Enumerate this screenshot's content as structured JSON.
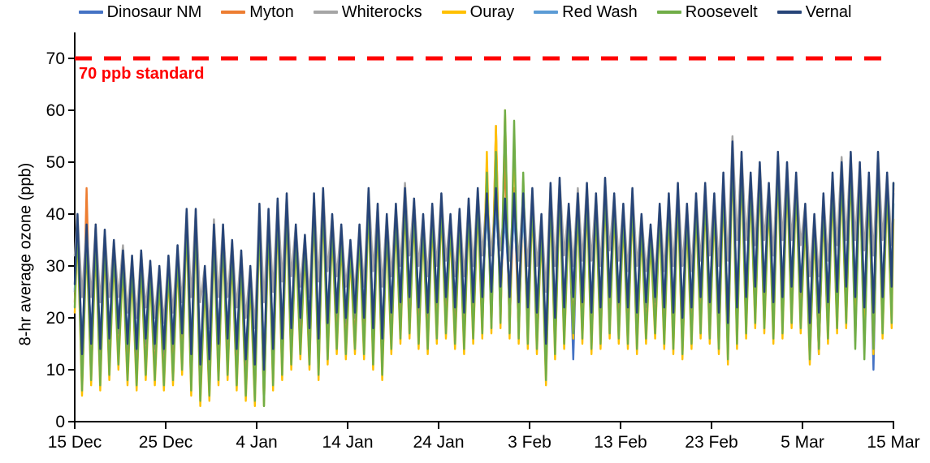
{
  "chart_data": {
    "type": "line",
    "title": "",
    "xlabel": "",
    "ylabel": "8-hr average ozone (ppb)",
    "ylim": [
      0,
      75
    ],
    "grid": false,
    "legend_position": "top",
    "y_ticks": [
      0,
      10,
      20,
      30,
      40,
      50,
      60,
      70
    ],
    "x_tick_days": [
      0,
      10,
      20,
      30,
      40,
      50,
      60,
      70,
      80,
      90
    ],
    "x_tick_labels": [
      "15 Dec",
      "25 Dec",
      "4 Jan",
      "14 Jan",
      "24 Jan",
      "3 Feb",
      "13 Feb",
      "23 Feb",
      "5 Mar",
      "15 Mar"
    ],
    "days_total": 90,
    "x_unit": "day (hourly 8-hr running averages oscillate daily between daily_min and daily_max)",
    "reference_line": {
      "value": 70,
      "label": "70 ppb standard",
      "color": "#ff0000"
    },
    "series": [
      {
        "name": "Dinosaur NM",
        "color": "#4472C4",
        "daily_max": [
          38,
          36,
          36,
          35,
          33,
          31,
          30,
          31,
          29,
          28,
          30,
          32,
          39,
          39,
          28,
          36,
          36,
          33,
          31,
          28,
          40,
          39,
          41,
          42,
          36,
          34,
          42,
          43,
          38,
          36,
          33,
          36,
          43,
          40,
          38,
          40,
          43,
          41,
          38,
          40,
          42,
          38,
          39,
          41,
          43,
          42,
          43,
          41,
          42,
          42,
          43,
          38,
          44,
          45,
          40,
          42,
          44,
          42,
          45,
          42,
          40,
          43,
          38,
          36,
          40,
          42,
          44,
          40,
          42,
          44,
          42,
          46,
          52,
          50,
          46,
          48,
          44,
          50,
          48,
          46,
          40,
          38,
          42,
          46,
          48,
          50,
          48,
          46,
          50,
          46,
          44
        ],
        "daily_min": [
          12,
          14,
          13,
          15,
          17,
          14,
          13,
          15,
          14,
          13,
          14,
          16,
          12,
          10,
          11,
          14,
          15,
          13,
          11,
          10,
          9,
          13,
          15,
          17,
          19,
          17,
          15,
          18,
          20,
          19,
          20,
          19,
          17,
          15,
          20,
          22,
          23,
          21,
          20,
          22,
          23,
          21,
          20,
          22,
          23,
          24,
          25,
          23,
          22,
          21,
          20,
          14,
          19,
          21,
          12,
          22,
          20,
          21,
          23,
          22,
          21,
          20,
          22,
          23,
          21,
          20,
          19,
          21,
          23,
          22,
          20,
          18,
          21,
          23,
          25,
          24,
          22,
          23,
          25,
          24,
          18,
          13,
          22,
          24,
          25,
          23,
          15,
          10,
          23,
          25,
          24
        ]
      },
      {
        "name": "Myton",
        "color": "#ED7D31",
        "daily_max": [
          39,
          45,
          38,
          36,
          34,
          32,
          31,
          32,
          30,
          29,
          31,
          33,
          40,
          40,
          29,
          37,
          37,
          34,
          32,
          29,
          41,
          40,
          42,
          43,
          37,
          35,
          43,
          44,
          39,
          37,
          34,
          37,
          44,
          41,
          39,
          41,
          44,
          42,
          39,
          41,
          43,
          39,
          40,
          42,
          44,
          50,
          57,
          52,
          45,
          43,
          44,
          39,
          45,
          46,
          41,
          43,
          45,
          43,
          46,
          43,
          41,
          44,
          39,
          37,
          41,
          43,
          45,
          41,
          43,
          45,
          43,
          47,
          53,
          51,
          47,
          49,
          45,
          51,
          49,
          47,
          41,
          39,
          43,
          47,
          49,
          51,
          49,
          47,
          51,
          47,
          45
        ],
        "daily_min": [
          7,
          9,
          8,
          10,
          12,
          9,
          8,
          10,
          9,
          8,
          9,
          11,
          7,
          5,
          6,
          9,
          10,
          8,
          6,
          5,
          4,
          8,
          10,
          12,
          14,
          12,
          10,
          13,
          15,
          14,
          15,
          14,
          12,
          10,
          15,
          17,
          18,
          16,
          15,
          17,
          18,
          16,
          15,
          17,
          18,
          19,
          20,
          18,
          17,
          16,
          15,
          9,
          14,
          16,
          18,
          17,
          15,
          16,
          18,
          17,
          16,
          15,
          17,
          18,
          16,
          15,
          14,
          16,
          18,
          17,
          15,
          13,
          16,
          18,
          20,
          19,
          17,
          18,
          20,
          19,
          13,
          15,
          17,
          19,
          20,
          18,
          16,
          15,
          18,
          20,
          19
        ]
      },
      {
        "name": "Whiterocks",
        "color": "#A5A5A5",
        "daily_max": [
          40,
          38,
          38,
          37,
          35,
          34,
          32,
          33,
          31,
          30,
          32,
          34,
          41,
          41,
          30,
          39,
          38,
          35,
          33,
          30,
          42,
          41,
          43,
          44,
          38,
          36,
          44,
          45,
          40,
          38,
          35,
          38,
          45,
          42,
          40,
          42,
          46,
          43,
          40,
          42,
          44,
          40,
          41,
          43,
          45,
          44,
          45,
          43,
          44,
          44,
          45,
          40,
          46,
          47,
          42,
          45,
          46,
          44,
          47,
          44,
          42,
          45,
          40,
          38,
          42,
          44,
          46,
          42,
          44,
          46,
          44,
          48,
          55,
          52,
          48,
          50,
          46,
          52,
          50,
          48,
          42,
          40,
          44,
          48,
          51,
          52,
          50,
          48,
          52,
          48,
          46
        ],
        "daily_min": [
          24,
          24,
          23,
          24,
          24,
          21,
          20,
          22,
          20,
          19,
          21,
          23,
          24,
          23,
          18,
          24,
          24,
          22,
          20,
          18,
          23,
          25,
          27,
          28,
          26,
          24,
          27,
          29,
          28,
          26,
          25,
          26,
          29,
          26,
          28,
          30,
          32,
          30,
          28,
          30,
          31,
          28,
          28,
          30,
          32,
          32,
          33,
          31,
          31,
          30,
          30,
          25,
          30,
          32,
          30,
          31,
          31,
          30,
          33,
          31,
          29,
          30,
          29,
          28,
          29,
          30,
          30,
          29,
          31,
          32,
          30,
          31,
          35,
          35,
          34,
          35,
          32,
          35,
          35,
          34,
          28,
          28,
          31,
          34,
          35,
          35,
          33,
          32,
          35,
          34,
          33
        ]
      },
      {
        "name": "Ouray",
        "color": "#FFC000",
        "daily_max": [
          37,
          35,
          34,
          34,
          32,
          30,
          29,
          30,
          28,
          27,
          29,
          31,
          38,
          38,
          27,
          35,
          35,
          32,
          30,
          27,
          39,
          38,
          40,
          41,
          35,
          33,
          41,
          42,
          37,
          35,
          32,
          35,
          42,
          39,
          37,
          39,
          42,
          40,
          37,
          39,
          41,
          37,
          38,
          40,
          42,
          52,
          57,
          60,
          55,
          47,
          42,
          37,
          43,
          44,
          39,
          41,
          43,
          41,
          44,
          41,
          39,
          42,
          37,
          35,
          39,
          41,
          43,
          39,
          41,
          43,
          41,
          45,
          51,
          49,
          45,
          47,
          43,
          49,
          47,
          45,
          39,
          37,
          41,
          45,
          47,
          49,
          47,
          45,
          49,
          45,
          39
        ],
        "daily_min": [
          5,
          7,
          6,
          8,
          10,
          7,
          6,
          8,
          7,
          6,
          7,
          9,
          5,
          3,
          4,
          7,
          8,
          6,
          4,
          3,
          3,
          6,
          8,
          10,
          12,
          10,
          8,
          11,
          13,
          12,
          13,
          12,
          10,
          8,
          13,
          15,
          16,
          14,
          13,
          15,
          16,
          14,
          13,
          15,
          16,
          17,
          18,
          16,
          15,
          14,
          13,
          7,
          12,
          14,
          16,
          15,
          13,
          14,
          16,
          15,
          14,
          13,
          15,
          16,
          14,
          13,
          12,
          14,
          16,
          15,
          13,
          11,
          14,
          16,
          18,
          17,
          15,
          16,
          18,
          17,
          11,
          13,
          15,
          17,
          18,
          16,
          14,
          13,
          16,
          18,
          17
        ]
      },
      {
        "name": "Red Wash",
        "color": "#5B9BD5",
        "daily_max": [
          36,
          34,
          34,
          33,
          31,
          29,
          28,
          29,
          27,
          26,
          28,
          30,
          37,
          37,
          26,
          34,
          34,
          31,
          29,
          26,
          38,
          37,
          39,
          40,
          34,
          32,
          40,
          41,
          36,
          34,
          31,
          34,
          41,
          38,
          36,
          38,
          41,
          39,
          36,
          38,
          40,
          36,
          37,
          39,
          41,
          40,
          41,
          39,
          40,
          40,
          41,
          36,
          42,
          43,
          38,
          40,
          42,
          40,
          43,
          40,
          38,
          41,
          36,
          34,
          38,
          40,
          42,
          38,
          40,
          42,
          40,
          44,
          50,
          48,
          44,
          46,
          42,
          48,
          46,
          44,
          38,
          36,
          40,
          44,
          46,
          48,
          46,
          44,
          48,
          44,
          42
        ],
        "daily_min": [
          15,
          17,
          16,
          18,
          20,
          17,
          16,
          18,
          17,
          16,
          17,
          19,
          15,
          13,
          14,
          17,
          18,
          16,
          14,
          13,
          12,
          16,
          18,
          20,
          22,
          20,
          18,
          21,
          23,
          22,
          23,
          22,
          20,
          18,
          23,
          25,
          26,
          24,
          23,
          25,
          26,
          24,
          23,
          25,
          26,
          27,
          28,
          26,
          25,
          24,
          23,
          17,
          22,
          24,
          26,
          25,
          23,
          24,
          26,
          25,
          24,
          23,
          25,
          26,
          24,
          23,
          22,
          24,
          26,
          25,
          23,
          21,
          24,
          26,
          28,
          27,
          25,
          26,
          28,
          27,
          21,
          23,
          25,
          27,
          28,
          26,
          24,
          23,
          26,
          28,
          27
        ]
      },
      {
        "name": "Roosevelt",
        "color": "#70AD47",
        "daily_max": [
          38,
          36,
          35,
          35,
          33,
          31,
          30,
          31,
          29,
          28,
          30,
          32,
          39,
          39,
          28,
          36,
          36,
          33,
          31,
          28,
          40,
          39,
          41,
          42,
          36,
          34,
          42,
          43,
          38,
          36,
          33,
          36,
          43,
          40,
          38,
          40,
          43,
          41,
          38,
          40,
          42,
          38,
          39,
          41,
          43,
          48,
          52,
          60,
          58,
          48,
          43,
          38,
          44,
          45,
          40,
          42,
          44,
          42,
          45,
          42,
          40,
          43,
          38,
          36,
          40,
          42,
          44,
          40,
          42,
          44,
          42,
          46,
          52,
          50,
          46,
          48,
          44,
          50,
          48,
          46,
          40,
          38,
          42,
          46,
          48,
          50,
          48,
          46,
          50,
          46,
          46
        ],
        "daily_min": [
          6,
          8,
          7,
          9,
          11,
          8,
          7,
          9,
          8,
          7,
          8,
          10,
          6,
          4,
          5,
          8,
          9,
          7,
          5,
          4,
          3,
          7,
          9,
          11,
          13,
          11,
          9,
          12,
          14,
          13,
          14,
          13,
          11,
          9,
          14,
          16,
          17,
          15,
          14,
          16,
          17,
          15,
          14,
          16,
          17,
          18,
          19,
          17,
          16,
          15,
          14,
          8,
          13,
          15,
          17,
          16,
          14,
          15,
          17,
          16,
          15,
          14,
          16,
          17,
          15,
          14,
          13,
          15,
          17,
          16,
          14,
          12,
          15,
          17,
          19,
          18,
          16,
          17,
          19,
          18,
          12,
          14,
          16,
          18,
          19,
          14,
          12,
          14,
          17,
          19,
          18
        ]
      },
      {
        "name": "Vernal",
        "color": "#264478",
        "daily_max": [
          40,
          38,
          38,
          37,
          35,
          33,
          32,
          33,
          31,
          30,
          32,
          34,
          41,
          41,
          30,
          38,
          38,
          35,
          33,
          30,
          42,
          41,
          43,
          44,
          38,
          36,
          44,
          45,
          40,
          38,
          35,
          38,
          45,
          42,
          40,
          42,
          45,
          43,
          40,
          42,
          44,
          40,
          41,
          43,
          45,
          44,
          45,
          43,
          44,
          44,
          45,
          40,
          46,
          47,
          42,
          44,
          46,
          44,
          47,
          44,
          42,
          45,
          40,
          38,
          42,
          44,
          46,
          42,
          44,
          46,
          44,
          48,
          54,
          52,
          48,
          50,
          46,
          52,
          50,
          48,
          42,
          40,
          44,
          48,
          50,
          52,
          50,
          48,
          52,
          48,
          46
        ],
        "daily_min": [
          13,
          15,
          14,
          16,
          18,
          15,
          14,
          16,
          15,
          14,
          15,
          17,
          13,
          11,
          12,
          15,
          16,
          14,
          12,
          11,
          10,
          14,
          16,
          18,
          20,
          18,
          16,
          19,
          21,
          20,
          21,
          20,
          18,
          16,
          21,
          23,
          24,
          22,
          21,
          23,
          24,
          22,
          21,
          23,
          24,
          25,
          26,
          24,
          23,
          22,
          21,
          15,
          20,
          22,
          24,
          23,
          21,
          22,
          24,
          23,
          22,
          21,
          23,
          24,
          22,
          21,
          20,
          22,
          24,
          23,
          21,
          19,
          22,
          24,
          26,
          25,
          23,
          24,
          26,
          25,
          19,
          21,
          23,
          25,
          26,
          24,
          22,
          21,
          24,
          26,
          25
        ]
      }
    ]
  }
}
